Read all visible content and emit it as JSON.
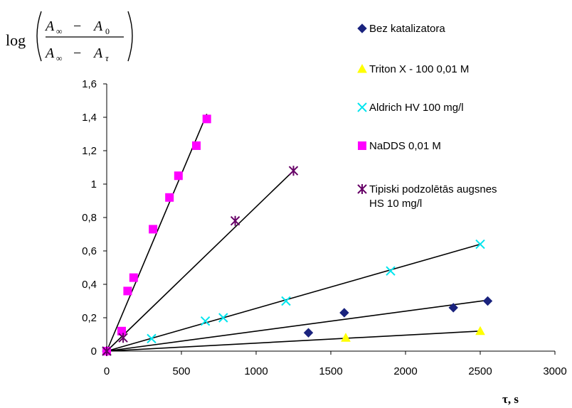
{
  "chart_data": {
    "type": "scatter",
    "ylabel_formula": {
      "log": "log",
      "num_a": "A",
      "num_a_sub": "∞",
      "num_minus": "−",
      "num_b": "A",
      "num_b_sub": "0",
      "den_a": "A",
      "den_a_sub": "∞",
      "den_minus": "−",
      "den_b": "A",
      "den_b_sub": "τ"
    },
    "xlabel": "τ, s",
    "xlim": [
      0,
      3000
    ],
    "ylim": [
      0,
      1.6
    ],
    "x_ticks": [
      "0",
      "500",
      "1000",
      "1500",
      "2000",
      "2500",
      "3000"
    ],
    "y_ticks": [
      "0",
      "0,2",
      "0,4",
      "0,6",
      "0,8",
      "1",
      "1,2",
      "1,4",
      "1,6"
    ],
    "grid": false,
    "legend_position": "right",
    "series": [
      {
        "name": "Bez katalizatora",
        "marker": "diamond",
        "color": "#1a237e",
        "points": [
          [
            0,
            0
          ],
          [
            1350,
            0.11
          ],
          [
            1590,
            0.23
          ],
          [
            2320,
            0.26
          ],
          [
            2550,
            0.3
          ]
        ],
        "fit": [
          [
            0,
            0
          ],
          [
            2550,
            0.305
          ]
        ]
      },
      {
        "name": "Triton X - 100 0,01 M",
        "marker": "triangle",
        "color": "#ffff00",
        "points": [
          [
            0,
            0
          ],
          [
            1600,
            0.08
          ],
          [
            2500,
            0.12
          ]
        ],
        "fit": [
          [
            0,
            0
          ],
          [
            2500,
            0.12
          ]
        ]
      },
      {
        "name": "Aldrich HV 100 mg/l",
        "marker": "x",
        "color": "#00e5ee",
        "points": [
          [
            0,
            0
          ],
          [
            300,
            0.075
          ],
          [
            660,
            0.18
          ],
          [
            780,
            0.2
          ],
          [
            1200,
            0.3
          ],
          [
            1900,
            0.48
          ],
          [
            2500,
            0.64
          ]
        ],
        "fit": [
          [
            0,
            0
          ],
          [
            2500,
            0.64
          ]
        ]
      },
      {
        "name": "NaDDS 0,01 M",
        "marker": "square",
        "color": "#ff00ff",
        "points": [
          [
            0,
            0
          ],
          [
            100,
            0.12
          ],
          [
            140,
            0.36
          ],
          [
            180,
            0.44
          ],
          [
            310,
            0.73
          ],
          [
            420,
            0.92
          ],
          [
            480,
            1.05
          ],
          [
            600,
            1.23
          ],
          [
            670,
            1.39
          ]
        ],
        "fit": [
          [
            0,
            0
          ],
          [
            670,
            1.42
          ]
        ]
      },
      {
        "name": "Tipiski podzolētās augsnes HS 10 mg/l",
        "legend_lines": [
          "Tipiski podzolētās augsnes",
          "HS 10 mg/l"
        ],
        "marker": "asterisk",
        "color": "#660066",
        "points": [
          [
            0,
            0
          ],
          [
            110,
            0.08
          ],
          [
            860,
            0.78
          ],
          [
            1250,
            1.08
          ]
        ],
        "fit": [
          [
            0,
            0
          ],
          [
            1250,
            1.08
          ]
        ]
      }
    ]
  }
}
